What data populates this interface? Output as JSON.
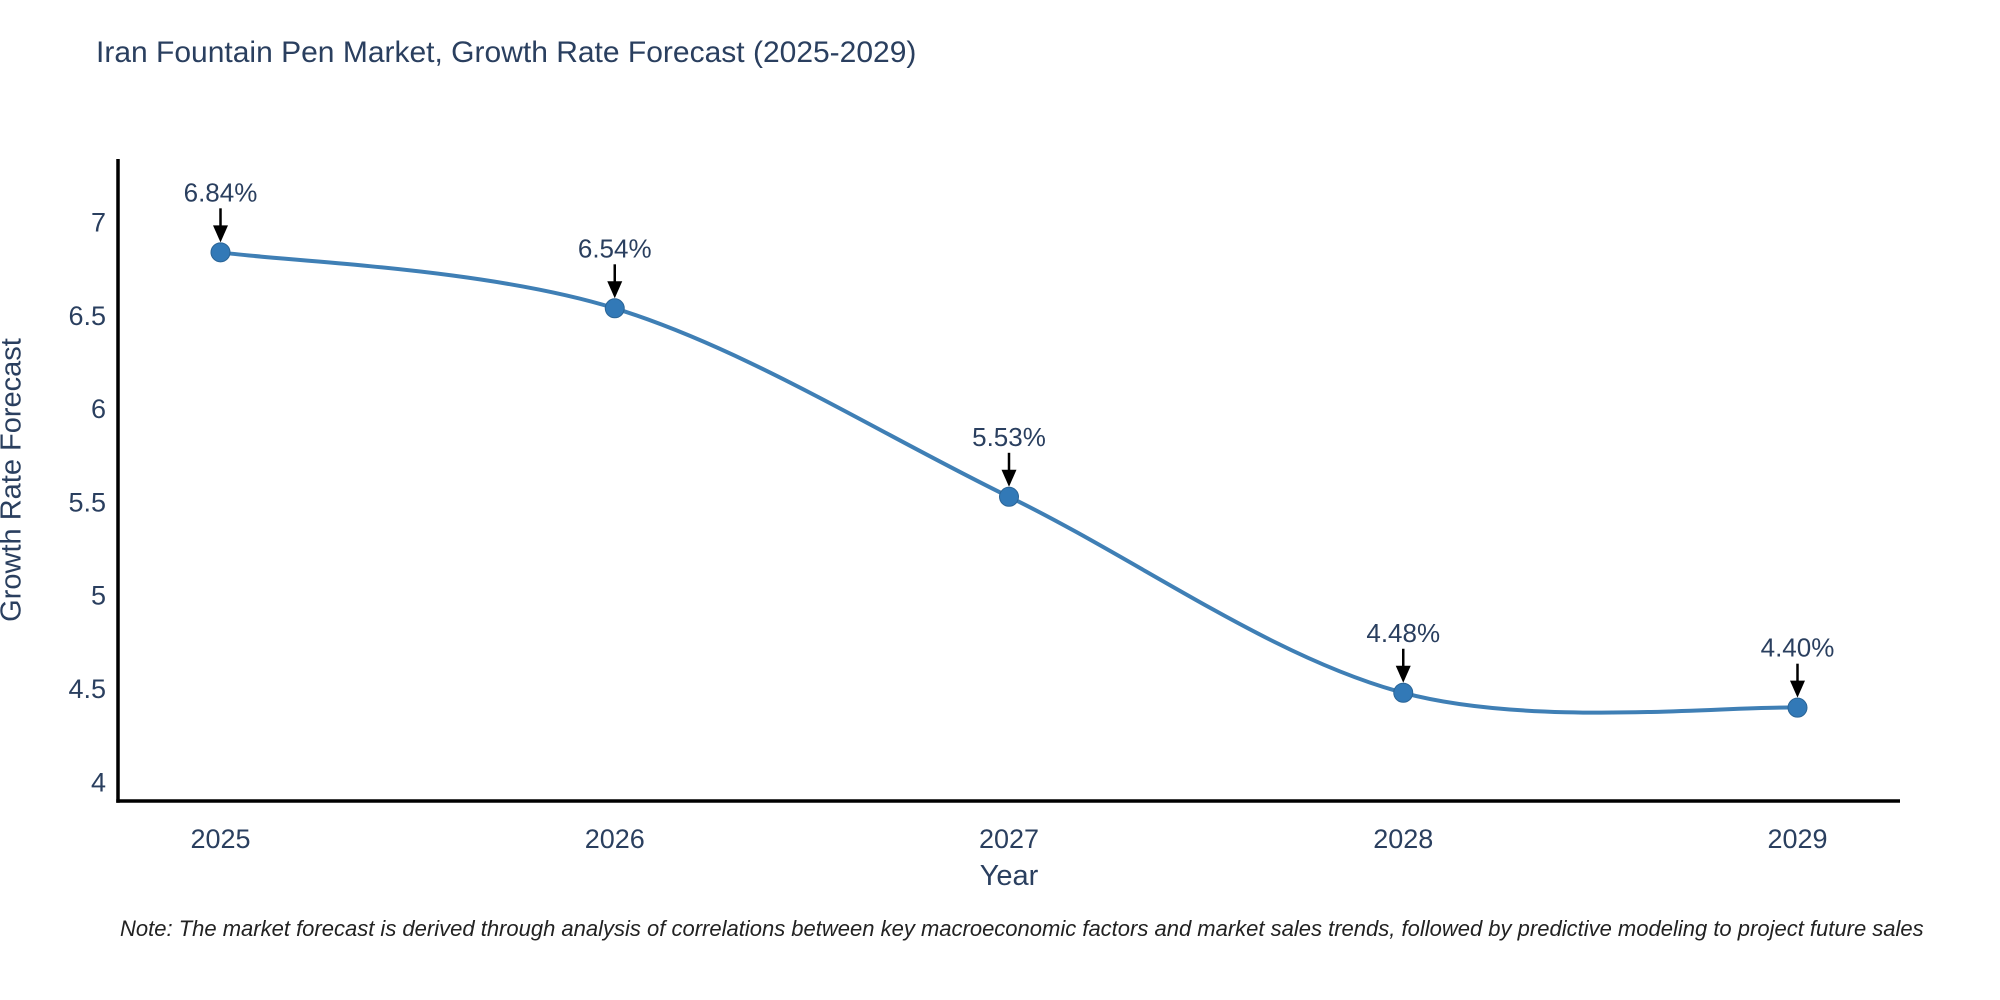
{
  "title": {
    "text": "Iran Fountain Pen Market, Growth Rate Forecast (2025-2029)"
  },
  "note": {
    "text": "Note: The market forecast is derived through analysis of correlations between key macroeconomic factors and market sales trends, followed by predictive modeling to project future sales"
  },
  "chart_data": {
    "type": "line",
    "title": "Iran Fountain Pen Market, Growth Rate Forecast (2025-2029)",
    "xlabel": "Year",
    "ylabel": "Growth Rate Forecast",
    "x": [
      2025,
      2026,
      2027,
      2028,
      2029
    ],
    "y": [
      6.84,
      6.54,
      5.53,
      4.48,
      4.4
    ],
    "point_labels": [
      "6.84%",
      "6.54%",
      "5.53%",
      "4.48%",
      "4.40%"
    ],
    "x_tick_values": [
      2025,
      2026,
      2027,
      2028,
      2029
    ],
    "x_tick_labels": [
      "2025",
      "2026",
      "2027",
      "2028",
      "2029"
    ],
    "y_tick_values": [
      4,
      4.5,
      5,
      5.5,
      6,
      6.5,
      7
    ],
    "y_tick_labels": [
      "4",
      "4.5",
      "5",
      "5.5",
      "6",
      "6.5",
      "7"
    ],
    "xlim": [
      2024.74,
      2029.26
    ],
    "ylim": [
      3.9,
      7.34
    ],
    "grid": false,
    "legend": "none",
    "line_shape": "spline",
    "colors": {
      "line": "#3f7fb5",
      "marker": "#3279b7",
      "marker_edge": "#2a6496",
      "text": "#2a3f5f",
      "axis": "#000000",
      "arrow": "#000000"
    }
  }
}
